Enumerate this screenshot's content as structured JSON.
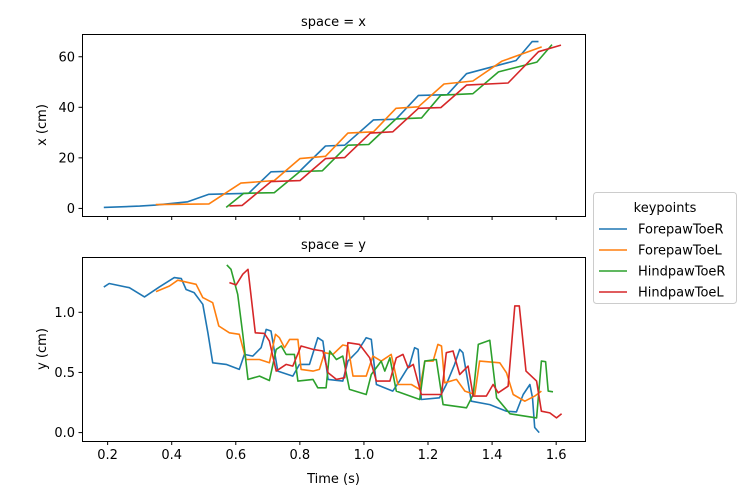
{
  "chart_data": [
    {
      "type": "line",
      "title": "space = x",
      "xlabel": "",
      "ylabel": "x (cm)",
      "xlim": [
        0.12,
        1.69
      ],
      "ylim": [
        -3,
        69
      ],
      "xticks": [
        0.2,
        0.4,
        0.6,
        0.8,
        1.0,
        1.2,
        1.4,
        1.6
      ],
      "xtick_labels_shown": false,
      "yticks": [
        0,
        20,
        40,
        60
      ],
      "ytick_labels": [
        "0",
        "20",
        "40",
        "60"
      ],
      "grid": false,
      "series": [
        {
          "name": "ForepawToeR",
          "points": [
            [
              0.188,
              0.4
            ],
            [
              0.3,
              0.9
            ],
            [
              0.35,
              1.3
            ],
            [
              0.45,
              2.6
            ],
            [
              0.516,
              5.6
            ],
            [
              0.64,
              6
            ],
            [
              0.71,
              14.5
            ],
            [
              0.8,
              14.8
            ],
            [
              0.88,
              24.7
            ],
            [
              0.94,
              25
            ],
            [
              1.03,
              35
            ],
            [
              1.1,
              35.3
            ],
            [
              1.17,
              44.7
            ],
            [
              1.26,
              45
            ],
            [
              1.32,
              53.3
            ],
            [
              1.475,
              58.5
            ],
            [
              1.525,
              66
            ],
            [
              1.545,
              66
            ]
          ]
        },
        {
          "name": "ForepawToeL",
          "points": [
            [
              0.35,
              1.5
            ],
            [
              0.516,
              1.8
            ],
            [
              0.616,
              10
            ],
            [
              0.72,
              11
            ],
            [
              0.8,
              19.7
            ],
            [
              0.88,
              20.6
            ],
            [
              0.95,
              29.8
            ],
            [
              1.03,
              30.3
            ],
            [
              1.1,
              39.6
            ],
            [
              1.17,
              40.2
            ],
            [
              1.25,
              49.2
            ],
            [
              1.34,
              50.4
            ],
            [
              1.43,
              58.2
            ],
            [
              1.555,
              63.9
            ]
          ]
        },
        {
          "name": "HindpawToeR",
          "points": [
            [
              0.57,
              0.4
            ],
            [
              0.625,
              6
            ],
            [
              0.72,
              6.2
            ],
            [
              0.8,
              14.6
            ],
            [
              0.87,
              14.9
            ],
            [
              0.95,
              25
            ],
            [
              1.015,
              25.3
            ],
            [
              1.1,
              35.4
            ],
            [
              1.18,
              35.8
            ],
            [
              1.24,
              44.8
            ],
            [
              1.34,
              45.4
            ],
            [
              1.42,
              54
            ],
            [
              1.54,
              57.9
            ],
            [
              1.587,
              64.8
            ]
          ]
        },
        {
          "name": "HindpawToeL",
          "points": [
            [
              0.58,
              1.0
            ],
            [
              0.62,
              1.2
            ],
            [
              0.71,
              10.6
            ],
            [
              0.8,
              11
            ],
            [
              0.88,
              19.7
            ],
            [
              0.94,
              20.1
            ],
            [
              1.02,
              29.8
            ],
            [
              1.09,
              30.3
            ],
            [
              1.17,
              39.6
            ],
            [
              1.24,
              39.9
            ],
            [
              1.32,
              48.8
            ],
            [
              1.45,
              49.6
            ],
            [
              1.545,
              62
            ],
            [
              1.615,
              64.6
            ]
          ]
        }
      ]
    },
    {
      "type": "line",
      "title": "space = y",
      "xlabel": "Time (s)",
      "ylabel": "y (cm)",
      "xlim": [
        0.12,
        1.69
      ],
      "ylim": [
        -0.07,
        1.46
      ],
      "xticks": [
        0.2,
        0.4,
        0.6,
        0.8,
        1.0,
        1.2,
        1.4,
        1.6
      ],
      "xtick_labels": [
        "0.2",
        "0.4",
        "0.6",
        "0.8",
        "1.0",
        "1.2",
        "1.4",
        "1.6"
      ],
      "yticks": [
        0,
        0.5,
        1.0
      ],
      "ytick_labels": [
        "0.0",
        "0.5",
        "1.0"
      ],
      "grid": false,
      "series": [
        {
          "name": "ForepawToeR",
          "points": [
            [
              0.188,
              1.21
            ],
            [
              0.205,
              1.24
            ],
            [
              0.268,
              1.205
            ],
            [
              0.315,
              1.128
            ],
            [
              0.361,
              1.21
            ],
            [
              0.408,
              1.289
            ],
            [
              0.43,
              1.28
            ],
            [
              0.445,
              1.19
            ],
            [
              0.47,
              1.164
            ],
            [
              0.497,
              1.067
            ],
            [
              0.513,
              0.83
            ],
            [
              0.528,
              0.58
            ],
            [
              0.57,
              0.567
            ],
            [
              0.611,
              0.525
            ],
            [
              0.627,
              0.65
            ],
            [
              0.653,
              0.636
            ],
            [
              0.679,
              0.706
            ],
            [
              0.695,
              0.858
            ],
            [
              0.71,
              0.845
            ],
            [
              0.731,
              0.511
            ],
            [
              0.778,
              0.47
            ],
            [
              0.799,
              0.567
            ],
            [
              0.83,
              0.567
            ],
            [
              0.856,
              0.789
            ],
            [
              0.872,
              0.761
            ],
            [
              0.888,
              0.442
            ],
            [
              0.934,
              0.428
            ],
            [
              0.95,
              0.594
            ],
            [
              0.981,
              0.678
            ],
            [
              1.007,
              0.789
            ],
            [
              1.023,
              0.775
            ],
            [
              1.039,
              0.4
            ],
            [
              1.09,
              0.345
            ],
            [
              1.111,
              0.428
            ],
            [
              1.143,
              0.567
            ],
            [
              1.158,
              0.706
            ],
            [
              1.169,
              0.692
            ],
            [
              1.179,
              0.275
            ],
            [
              1.236,
              0.289
            ],
            [
              1.257,
              0.4
            ],
            [
              1.283,
              0.567
            ],
            [
              1.299,
              0.692
            ],
            [
              1.309,
              0.664
            ],
            [
              1.335,
              0.261
            ],
            [
              1.393,
              0.233
            ],
            [
              1.445,
              0.178
            ],
            [
              1.476,
              0.172
            ],
            [
              1.497,
              0.317
            ],
            [
              1.518,
              0.4
            ],
            [
              1.526,
              0.289
            ],
            [
              1.533,
              0.042
            ],
            [
              1.547,
              0.0
            ]
          ]
        },
        {
          "name": "ForepawToeL",
          "points": [
            [
              0.351,
              1.172
            ],
            [
              0.393,
              1.219
            ],
            [
              0.419,
              1.267
            ],
            [
              0.476,
              1.233
            ],
            [
              0.497,
              1.122
            ],
            [
              0.528,
              1.08
            ],
            [
              0.547,
              0.886
            ],
            [
              0.58,
              0.83
            ],
            [
              0.611,
              0.817
            ],
            [
              0.632,
              0.608
            ],
            [
              0.674,
              0.608
            ],
            [
              0.705,
              0.58
            ],
            [
              0.724,
              0.817
            ],
            [
              0.736,
              0.789
            ],
            [
              0.752,
              0.706
            ],
            [
              0.768,
              0.775
            ],
            [
              0.794,
              0.775
            ],
            [
              0.804,
              0.525
            ],
            [
              0.841,
              0.511
            ],
            [
              0.861,
              0.525
            ],
            [
              0.877,
              0.664
            ],
            [
              0.903,
              0.65
            ],
            [
              0.934,
              0.728
            ],
            [
              0.95,
              0.72
            ],
            [
              0.966,
              0.47
            ],
            [
              1.007,
              0.47
            ],
            [
              1.028,
              0.636
            ],
            [
              1.054,
              0.594
            ],
            [
              1.085,
              0.65
            ],
            [
              1.106,
              0.4
            ],
            [
              1.148,
              0.4
            ],
            [
              1.174,
              0.359
            ],
            [
              1.19,
              0.594
            ],
            [
              1.216,
              0.594
            ],
            [
              1.231,
              0.733
            ],
            [
              1.242,
              0.72
            ],
            [
              1.252,
              0.414
            ],
            [
              1.289,
              0.442
            ],
            [
              1.315,
              0.345
            ],
            [
              1.346,
              0.317
            ],
            [
              1.361,
              0.594
            ],
            [
              1.424,
              0.58
            ],
            [
              1.445,
              0.497
            ],
            [
              1.466,
              0.317
            ],
            [
              1.502,
              0.261
            ],
            [
              1.533,
              0.303
            ],
            [
              1.554,
              0.345
            ]
          ]
        },
        {
          "name": "HindpawToeR",
          "points": [
            [
              0.572,
              1.394
            ],
            [
              0.585,
              1.358
            ],
            [
              0.606,
              1.15
            ],
            [
              0.622,
              0.817
            ],
            [
              0.638,
              0.442
            ],
            [
              0.674,
              0.47
            ],
            [
              0.705,
              0.433
            ],
            [
              0.726,
              0.692
            ],
            [
              0.742,
              0.72
            ],
            [
              0.757,
              0.65
            ],
            [
              0.783,
              0.65
            ],
            [
              0.794,
              0.428
            ],
            [
              0.841,
              0.442
            ],
            [
              0.856,
              0.372
            ],
            [
              0.882,
              0.372
            ],
            [
              0.893,
              0.678
            ],
            [
              0.914,
              0.608
            ],
            [
              0.934,
              0.636
            ],
            [
              0.955,
              0.359
            ],
            [
              1.007,
              0.317
            ],
            [
              1.023,
              0.483
            ],
            [
              1.054,
              0.594
            ],
            [
              1.065,
              0.511
            ],
            [
              1.081,
              0.622
            ],
            [
              1.101,
              0.345
            ],
            [
              1.174,
              0.275
            ],
            [
              1.19,
              0.594
            ],
            [
              1.226,
              0.608
            ],
            [
              1.247,
              0.233
            ],
            [
              1.32,
              0.206
            ],
            [
              1.341,
              0.317
            ],
            [
              1.357,
              0.733
            ],
            [
              1.393,
              0.767
            ],
            [
              1.414,
              0.289
            ],
            [
              1.456,
              0.156
            ],
            [
              1.539,
              0.122
            ],
            [
              1.554,
              0.594
            ],
            [
              1.567,
              0.589
            ],
            [
              1.575,
              0.345
            ],
            [
              1.59,
              0.339
            ]
          ]
        },
        {
          "name": "HindpawToeL",
          "points": [
            [
              0.58,
              1.247
            ],
            [
              0.601,
              1.228
            ],
            [
              0.622,
              1.317
            ],
            [
              0.638,
              1.358
            ],
            [
              0.661,
              0.83
            ],
            [
              0.689,
              0.825
            ],
            [
              0.705,
              0.761
            ],
            [
              0.726,
              0.511
            ],
            [
              0.757,
              0.567
            ],
            [
              0.778,
              0.553
            ],
            [
              0.804,
              0.72
            ],
            [
              0.841,
              0.692
            ],
            [
              0.872,
              0.678
            ],
            [
              0.888,
              0.497
            ],
            [
              0.914,
              0.442
            ],
            [
              0.94,
              0.456
            ],
            [
              0.95,
              0.747
            ],
            [
              0.986,
              0.733
            ],
            [
              1.018,
              0.622
            ],
            [
              1.039,
              0.428
            ],
            [
              1.081,
              0.428
            ],
            [
              1.101,
              0.622
            ],
            [
              1.122,
              0.65
            ],
            [
              1.138,
              0.539
            ],
            [
              1.154,
              0.567
            ],
            [
              1.179,
              0.317
            ],
            [
              1.242,
              0.317
            ],
            [
              1.257,
              0.664
            ],
            [
              1.278,
              0.678
            ],
            [
              1.299,
              0.483
            ],
            [
              1.325,
              0.553
            ],
            [
              1.341,
              0.303
            ],
            [
              1.382,
              0.303
            ],
            [
              1.403,
              0.4
            ],
            [
              1.419,
              0.331
            ],
            [
              1.45,
              0.386
            ],
            [
              1.471,
              1.053
            ],
            [
              1.485,
              1.053
            ],
            [
              1.506,
              0.511
            ],
            [
              1.539,
              0.428
            ],
            [
              1.554,
              0.178
            ],
            [
              1.58,
              0.164
            ],
            [
              1.601,
              0.122
            ],
            [
              1.617,
              0.156
            ]
          ]
        }
      ]
    }
  ],
  "legend": {
    "title": "keypoints",
    "placement": "center-right",
    "entries": [
      {
        "label": "ForepawToeR",
        "color": "#1f77b4"
      },
      {
        "label": "ForepawToeL",
        "color": "#ff7f0e"
      },
      {
        "label": "HindpawToeR",
        "color": "#2ca02c"
      },
      {
        "label": "HindpawToeL",
        "color": "#d62728"
      }
    ]
  }
}
